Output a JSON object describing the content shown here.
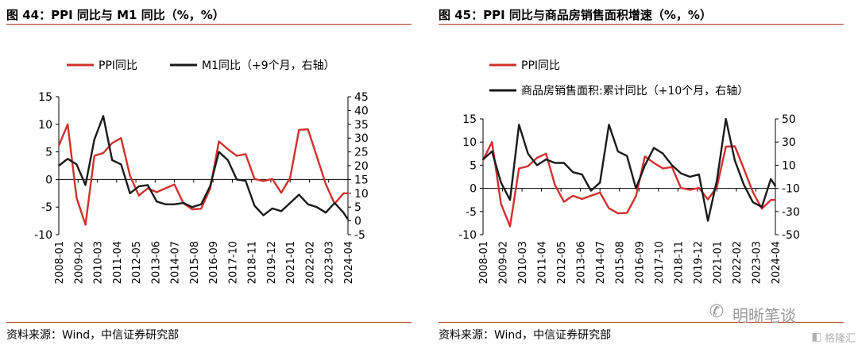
{
  "panels": [
    {
      "title": "图 44：PPI 同比与 M1 同比（%，%）",
      "source": "资料来源：Wind，中信证券研究部"
    },
    {
      "title": "图 45：PPI 同比与商品房销售面积增速（%，%）",
      "source": "资料来源：Wind，中信证券研究部"
    }
  ],
  "watermark": {
    "logo_icon": "wechat-icon",
    "text": "明晰笔谈",
    "brand_icon": "gelonghui-icon",
    "brand": "格隆汇"
  },
  "chart_data": [
    {
      "type": "line",
      "title": "",
      "x": [
        "2008-01",
        "2008-07",
        "2009-01",
        "2009-07",
        "2010-01",
        "2010-07",
        "2011-01",
        "2011-07",
        "2012-01",
        "2012-07",
        "2013-01",
        "2013-07",
        "2014-01",
        "2014-07",
        "2015-01",
        "2015-07",
        "2016-01",
        "2016-07",
        "2017-01",
        "2017-07",
        "2018-01",
        "2018-07",
        "2019-01",
        "2019-07",
        "2020-01",
        "2020-07",
        "2021-01",
        "2021-07",
        "2022-01",
        "2022-07",
        "2023-01",
        "2023-07",
        "2024-01",
        "2024-04"
      ],
      "x_tick_labels": [
        "2008-01",
        "2009-02",
        "2010-03",
        "2011-04",
        "2012-05",
        "2013-06",
        "2014-07",
        "2015-08",
        "2016-09",
        "2017-10",
        "2018-11",
        "2019-12",
        "2021-01",
        "2022-02",
        "2023-03",
        "2024-04"
      ],
      "left_axis": {
        "ylim": [
          -10,
          15
        ],
        "ticks": [
          "-10",
          "-5",
          "0",
          "5",
          "10",
          "15"
        ]
      },
      "right_axis": {
        "ylim": [
          -5,
          45
        ],
        "ticks": [
          "-5",
          "0",
          "5",
          "10",
          "15",
          "20",
          "25",
          "30",
          "35",
          "40",
          "45"
        ]
      },
      "legend_position": "top",
      "zero_line": true,
      "series": [
        {
          "name": "PPI同比",
          "axis": "left",
          "color": "#d0302c",
          "values": [
            6.1,
            10.0,
            -3.3,
            -8.2,
            4.3,
            4.8,
            6.6,
            7.5,
            0.7,
            -2.9,
            -1.6,
            -2.3,
            -1.6,
            -0.9,
            -4.3,
            -5.4,
            -5.3,
            -1.7,
            6.9,
            5.5,
            4.3,
            4.6,
            0.1,
            -0.3,
            0.1,
            -2.4,
            0.3,
            9.0,
            9.1,
            4.2,
            -0.8,
            -4.4,
            -2.5,
            -2.5
          ]
        },
        {
          "name": "M1同比（+9个月，右轴）",
          "axis": "right",
          "color": "#1a1a1a",
          "values": [
            20.0,
            22.5,
            20.5,
            13.0,
            29.5,
            38.0,
            22.0,
            20.5,
            10.0,
            12.5,
            13.0,
            7.0,
            6.0,
            6.0,
            6.5,
            5.0,
            6.0,
            12.5,
            25.0,
            22.0,
            15.0,
            14.5,
            5.5,
            2.0,
            4.5,
            3.5,
            6.5,
            9.5,
            6.0,
            5.0,
            3.0,
            6.5,
            3.0,
            0.5
          ]
        }
      ]
    },
    {
      "type": "line",
      "title": "",
      "x": [
        "2008-01",
        "2008-07",
        "2009-01",
        "2009-07",
        "2010-01",
        "2010-07",
        "2011-01",
        "2011-07",
        "2012-01",
        "2012-07",
        "2013-01",
        "2013-07",
        "2014-01",
        "2014-07",
        "2015-01",
        "2015-07",
        "2016-01",
        "2016-07",
        "2017-01",
        "2017-07",
        "2018-01",
        "2018-07",
        "2019-01",
        "2019-07",
        "2020-01",
        "2020-07",
        "2021-01",
        "2021-07",
        "2022-01",
        "2022-07",
        "2023-01",
        "2023-07",
        "2024-01",
        "2024-04"
      ],
      "x_tick_labels": [
        "2008-01",
        "2009-02",
        "2010-03",
        "2011-04",
        "2012-05",
        "2013-06",
        "2014-07",
        "2015-08",
        "2016-09",
        "2017-10",
        "2018-11",
        "2019-12",
        "2021-01",
        "2022-02",
        "2023-03",
        "2024-04"
      ],
      "left_axis": {
        "ylim": [
          -10,
          15
        ],
        "ticks": [
          "-10",
          "-5",
          "0",
          "5",
          "10",
          "15"
        ]
      },
      "right_axis": {
        "ylim": [
          -50,
          50
        ],
        "ticks": [
          "-50",
          "-30",
          "-10",
          "10",
          "30",
          "50"
        ]
      },
      "legend_position": "top-left",
      "zero_line": true,
      "series": [
        {
          "name": "PPI同比",
          "axis": "left",
          "color": "#d0302c",
          "values": [
            6.1,
            10.0,
            -3.3,
            -8.2,
            4.3,
            4.8,
            6.6,
            7.5,
            0.7,
            -2.9,
            -1.6,
            -2.3,
            -1.6,
            -0.9,
            -4.3,
            -5.4,
            -5.3,
            -1.7,
            6.9,
            5.5,
            4.3,
            4.6,
            0.1,
            -0.3,
            0.1,
            -2.4,
            0.3,
            9.0,
            9.1,
            4.2,
            -0.8,
            -4.4,
            -2.5,
            -2.5
          ]
        },
        {
          "name": "商品房销售面积:累计同比（+10个月，右轴）",
          "axis": "right",
          "color": "#1a1a1a",
          "values": [
            15.0,
            22.0,
            -5.0,
            -20.0,
            45.0,
            20.0,
            10.0,
            15.0,
            12.0,
            12.0,
            4.0,
            2.0,
            -12.0,
            -5.0,
            45.0,
            22.0,
            18.0,
            -10.0,
            10.0,
            25.0,
            20.0,
            10.0,
            3.0,
            0.0,
            2.0,
            -38.0,
            -3.0,
            50.0,
            14.0,
            -7.0,
            -22.0,
            -26.0,
            -2.0,
            -8.0
          ]
        }
      ]
    }
  ]
}
